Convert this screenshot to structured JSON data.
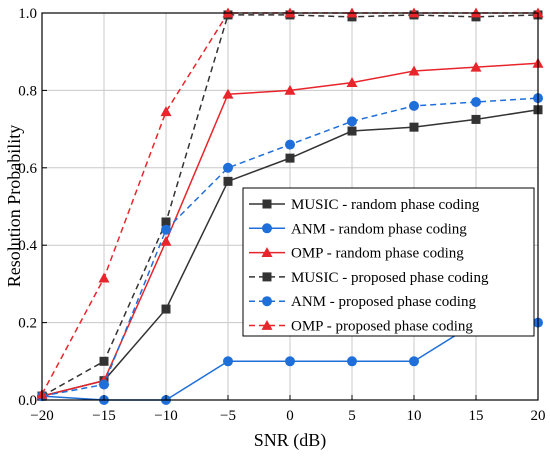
{
  "chart_data": {
    "type": "line",
    "title": "",
    "xlabel": "SNR (dB)",
    "ylabel": "Resolution Probability",
    "x": [
      -20,
      -15,
      -10,
      -5,
      0,
      5,
      10,
      15,
      20
    ],
    "xlim": [
      -20,
      20
    ],
    "ylim": [
      0,
      1
    ],
    "xticks": [
      "−20",
      "−15",
      "−10",
      "−5",
      "0",
      "5",
      "10",
      "15",
      "20"
    ],
    "yticks": [
      "0.0",
      "0.2",
      "0.4",
      "0.6",
      "0.8",
      "1.0"
    ],
    "grid": true,
    "legend_position": "bottom-right",
    "series": [
      {
        "name": "MUSIC - random phase coding",
        "color": "#333333",
        "dash": "solid",
        "marker": "square",
        "values": [
          0.01,
          0.05,
          0.235,
          0.565,
          0.625,
          0.695,
          0.705,
          0.725,
          0.75
        ]
      },
      {
        "name": "ANM - random phase coding",
        "color": "#1f6fdb",
        "dash": "solid",
        "marker": "circle",
        "values": [
          0.01,
          0.0,
          0.0,
          0.1,
          0.1,
          0.1,
          0.1,
          0.2,
          0.2
        ]
      },
      {
        "name": "OMP - random phase coding",
        "color": "#e8252b",
        "dash": "solid",
        "marker": "triangle",
        "values": [
          0.01,
          0.05,
          0.41,
          0.79,
          0.8,
          0.82,
          0.85,
          0.86,
          0.87
        ]
      },
      {
        "name": "MUSIC - proposed phase coding",
        "color": "#333333",
        "dash": "dashed",
        "marker": "square",
        "values": [
          0.01,
          0.1,
          0.46,
          0.995,
          0.995,
          0.99,
          0.995,
          0.99,
          0.995
        ]
      },
      {
        "name": "ANM - proposed phase coding",
        "color": "#1f6fdb",
        "dash": "dashed",
        "marker": "circle",
        "values": [
          0.01,
          0.04,
          0.44,
          0.6,
          0.66,
          0.72,
          0.76,
          0.77,
          0.78
        ]
      },
      {
        "name": "OMP - proposed phase coding",
        "color": "#e8252b",
        "dash": "dashed",
        "marker": "triangle",
        "values": [
          0.015,
          0.315,
          0.745,
          1.0,
          1.0,
          1.0,
          1.0,
          1.0,
          1.0
        ]
      }
    ]
  }
}
